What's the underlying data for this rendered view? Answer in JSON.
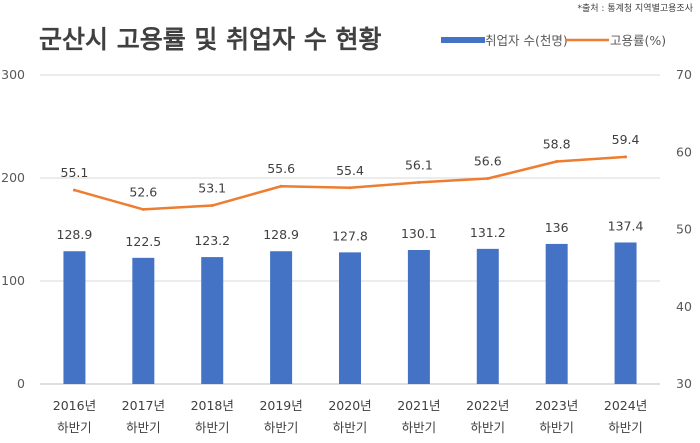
{
  "title": "군산시 고용률 및 취업자 수 현황",
  "source_note": "*출처 : 통계청 지역별고용조사",
  "chart_data": {
    "type": "bar",
    "categories": [
      [
        "2016년",
        "하반기"
      ],
      [
        "2017년",
        "하반기"
      ],
      [
        "2018년",
        "하반기"
      ],
      [
        "2019년",
        "하반기"
      ],
      [
        "2020년",
        "하반기"
      ],
      [
        "2021년",
        "하반기"
      ],
      [
        "2022년",
        "하반기"
      ],
      [
        "2023년",
        "하반기"
      ],
      [
        "2024년",
        "하반기"
      ]
    ],
    "series": [
      {
        "name": "취업자 수(천명)",
        "type": "bar",
        "axis": "left",
        "color": "#4472C4",
        "values": [
          128.9,
          122.5,
          123.2,
          128.9,
          127.8,
          130.1,
          131.2,
          136,
          137.4
        ]
      },
      {
        "name": "고용률(%)",
        "type": "line",
        "axis": "right",
        "color": "#ED7D31",
        "values": [
          55.1,
          52.6,
          53.1,
          55.6,
          55.4,
          56.1,
          56.6,
          58.8,
          59.4
        ]
      }
    ],
    "y_left": {
      "ticks": [
        0,
        100,
        200,
        300
      ],
      "ylim": [
        0,
        300
      ]
    },
    "y_right": {
      "ticks": [
        30,
        40,
        50,
        60,
        70
      ],
      "ylim": [
        30,
        70
      ]
    },
    "grid": true,
    "legend": "top-right"
  }
}
